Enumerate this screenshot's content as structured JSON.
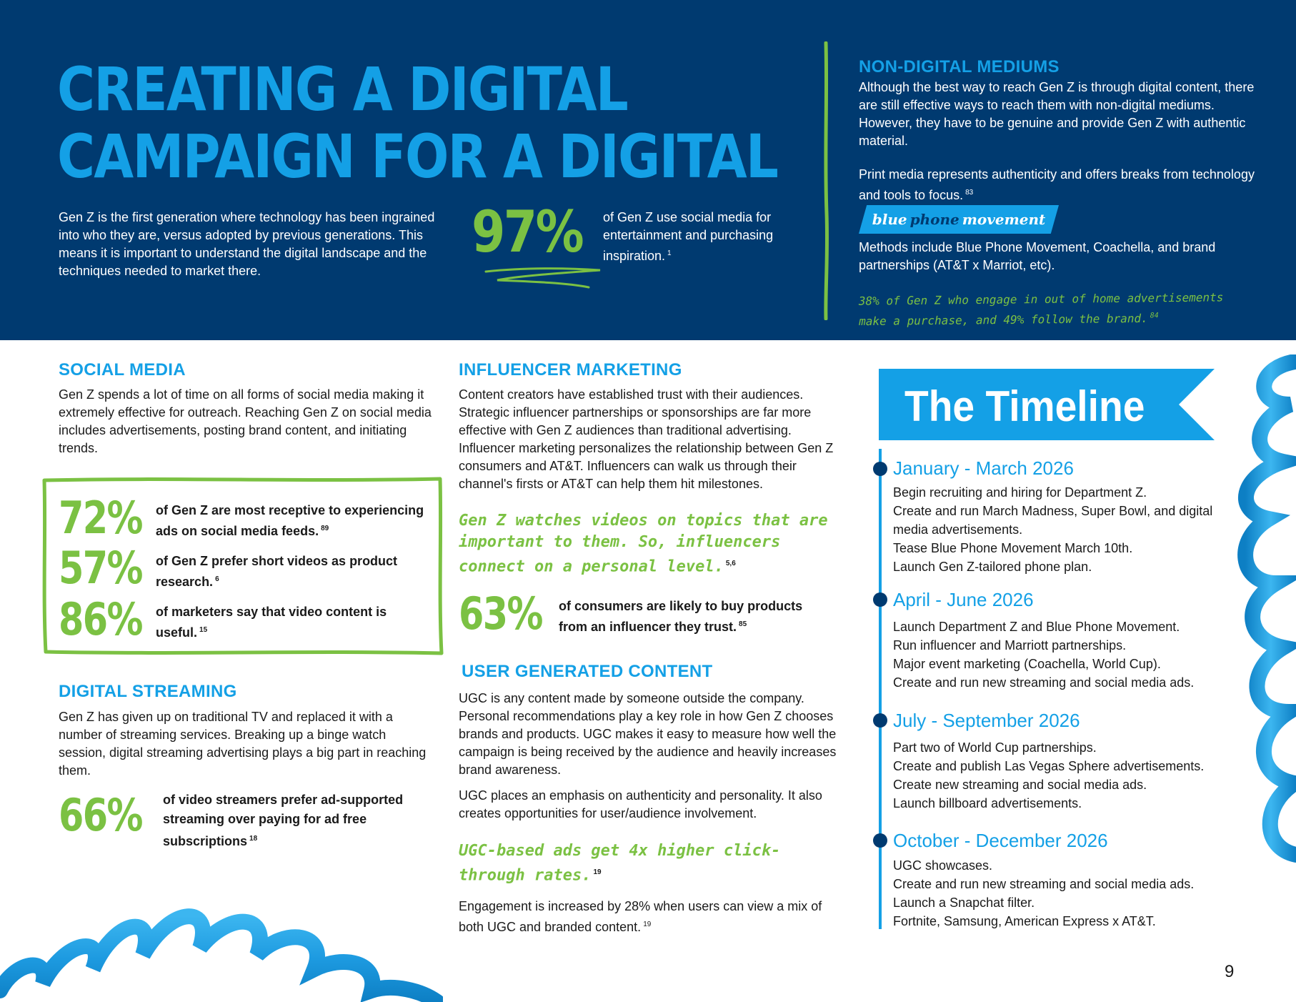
{
  "header": {
    "title_line1": "CREATING A DIGITAL",
    "title_line2": "CAMPAIGN FOR A DIGITAL",
    "intro": "Gen Z is the first generation where technology has been ingrained into who they are, versus adopted by previous generations. This means it is important to understand the digital landscape and the techniques needed to market there.",
    "stat_value": "97%",
    "stat_text": "of Gen Z use social media for entertainment and purchasing inspiration.",
    "stat_ref": "1"
  },
  "non_digital": {
    "heading": "NON-DIGITAL MEDIUMS",
    "p1": "Although the best way to reach Gen Z is through digital content, there are still effective ways to reach them with non-digital mediums. However, they have to be genuine and provide Gen Z with authentic material.",
    "p2": "Print media represents authenticity and offers breaks from technology and tools to focus.",
    "p2_ref": "83",
    "banner_word1": "blue",
    "banner_word2": "phone",
    "banner_word3": "movement",
    "p3": "Methods include Blue Phone Movement, Coachella, and brand partnerships (AT&T x Marriot, etc).",
    "quote": "38% of Gen Z who engage in out of home advertisements make a purchase, and 49% follow the brand.",
    "quote_ref": "84"
  },
  "social_media": {
    "heading": "SOCIAL MEDIA",
    "body": "Gen Z spends a lot of time on all forms of social media making it extremely effective for outreach. Reaching Gen Z on social media includes advertisements, posting brand content, and initiating trends.",
    "stats": [
      {
        "value": "72%",
        "label": "of Gen Z are most receptive to experiencing ads on social media feeds.",
        "ref": "89"
      },
      {
        "value": "57%",
        "label": "of Gen Z prefer short videos as product research.",
        "ref": "6"
      },
      {
        "value": "86%",
        "label": "of marketers say that video content is useful.",
        "ref": "15"
      }
    ]
  },
  "digital_streaming": {
    "heading": "DIGITAL STREAMING",
    "body": "Gen Z has given up on traditional TV and replaced it with a number of streaming services. Breaking up a binge watch session, digital streaming advertising plays a big part in reaching them.",
    "stat_value": "66%",
    "stat_label": "of video streamers prefer ad-supported streaming over paying for ad free subscriptions",
    "stat_ref": "18"
  },
  "influencer": {
    "heading": "INFLUENCER MARKETING",
    "body": "Content creators have established trust with their audiences. Strategic influencer partnerships or sponsorships are far more effective with Gen Z audiences than traditional advertising. Influencer marketing personalizes the relationship between Gen Z consumers and AT&T.  Influencers can walk us through their channel's firsts or AT&T can help them hit milestones.",
    "quote": "Gen Z watches videos on topics that are important to them. So, influencers connect on a personal level.",
    "quote_ref": "5,6",
    "stat_value": "63%",
    "stat_label": "of consumers are likely to buy products from an influencer they trust.",
    "stat_ref": "85"
  },
  "ugc": {
    "heading": "USER GENERATED CONTENT",
    "p1": "UGC is any content made by someone outside the company. Personal recommendations play a key role in how Gen Z chooses brands and products. UGC makes it easy to measure how well the campaign is being received by the audience and heavily increases brand awareness.",
    "p2": "UGC places an emphasis on authenticity and personality. It also creates opportunities for user/audience involvement.",
    "quote": "UGC-based ads get 4x higher click-through rates.",
    "quote_ref": "19",
    "p3": "Engagement is increased by 28% when users can view a mix of both UGC and branded content.",
    "p3_ref": "19"
  },
  "timeline": {
    "title": "The Timeline",
    "periods": [
      {
        "heading": "January - March 2026",
        "items": [
          "Begin recruiting and hiring for Department Z.",
          "Create and run March Madness, Super Bowl, and digital media advertisements.",
          "Tease Blue Phone Movement March 10th.",
          "Launch Gen Z-tailored phone plan."
        ]
      },
      {
        "heading": "April - June 2026",
        "items": [
          "Launch Department Z and Blue Phone Movement.",
          "Run influencer and Marriott partnerships.",
          "Major event marketing (Coachella, World Cup).",
          "Create and run new streaming and social media ads."
        ]
      },
      {
        "heading": "July - September 2026",
        "items": [
          "Part two of World Cup partnerships.",
          "Create and publish Las Vegas Sphere advertisements.",
          "Create new streaming and social media ads.",
          "Launch billboard advertisements."
        ]
      },
      {
        "heading": "October - December 2026",
        "items": [
          "UGC showcases.",
          "Create and run new streaming and social media ads.",
          "Launch a Snapchat filter.",
          "Fortnite, Samsung, American Express x AT&T."
        ]
      }
    ]
  },
  "page_number": "9",
  "colors": {
    "navy": "#003a70",
    "blue": "#14a0e6",
    "green": "#7bc143"
  }
}
